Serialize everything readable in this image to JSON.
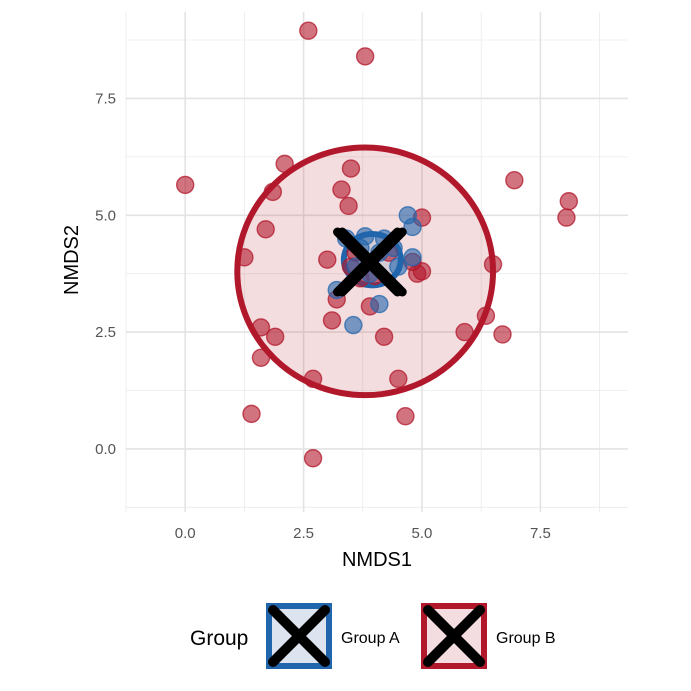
{
  "chart_data": {
    "type": "scatter",
    "xlabel": "NMDS1",
    "ylabel": "NMDS2",
    "xlim": [
      -1.25,
      9.35
    ],
    "ylim": [
      -1.35,
      9.35
    ],
    "x_ticks": [
      0.0,
      2.5,
      5.0,
      7.5
    ],
    "y_ticks": [
      0.0,
      2.5,
      5.0,
      7.5
    ],
    "x_tick_labels": [
      "0.0",
      "2.5",
      "5.0",
      "7.5"
    ],
    "y_tick_labels": [
      "0.0",
      "2.5",
      "5.0",
      "7.5"
    ],
    "grid": true,
    "legend_position": "bottom",
    "legend_title": "Group",
    "series": [
      {
        "name": "Group B",
        "color": "#b2182b",
        "centroid": [
          3.85,
          4.0
        ],
        "ellipse": {
          "cx": 3.8,
          "cy": 3.8,
          "rx": 2.7,
          "ry": 2.65
        },
        "points": [
          [
            2.6,
            8.95
          ],
          [
            3.8,
            8.4
          ],
          [
            0.0,
            5.65
          ],
          [
            2.1,
            6.1
          ],
          [
            1.85,
            5.5
          ],
          [
            1.7,
            4.7
          ],
          [
            1.25,
            4.1
          ],
          [
            3.5,
            6.0
          ],
          [
            3.3,
            5.55
          ],
          [
            3.45,
            5.2
          ],
          [
            6.95,
            5.75
          ],
          [
            8.1,
            5.3
          ],
          [
            8.05,
            4.95
          ],
          [
            5.0,
            4.95
          ],
          [
            6.5,
            3.95
          ],
          [
            6.35,
            2.85
          ],
          [
            6.7,
            2.45
          ],
          [
            5.9,
            2.5
          ],
          [
            4.9,
            3.75
          ],
          [
            5.0,
            3.8
          ],
          [
            4.8,
            4.0
          ],
          [
            3.0,
            4.05
          ],
          [
            3.2,
            3.2
          ],
          [
            3.1,
            2.75
          ],
          [
            3.7,
            3.65
          ],
          [
            3.9,
            3.05
          ],
          [
            4.2,
            2.4
          ],
          [
            4.5,
            1.5
          ],
          [
            4.65,
            0.7
          ],
          [
            2.7,
            1.5
          ],
          [
            2.7,
            -0.2
          ],
          [
            1.4,
            0.75
          ],
          [
            1.6,
            2.6
          ],
          [
            1.9,
            2.4
          ],
          [
            1.6,
            1.95
          ],
          [
            3.5,
            3.9
          ],
          [
            3.6,
            4.2
          ],
          [
            4.0,
            3.7
          ],
          [
            4.3,
            4.2
          ]
        ]
      },
      {
        "name": "Group A",
        "color": "#2166ac",
        "centroid": [
          3.95,
          4.0
        ],
        "ellipse": {
          "cx": 3.95,
          "cy": 4.05,
          "rx": 0.6,
          "ry": 0.55
        },
        "points": [
          [
            4.7,
            5.0
          ],
          [
            4.8,
            4.75
          ],
          [
            4.8,
            4.1
          ],
          [
            3.2,
            3.4
          ],
          [
            3.55,
            2.65
          ],
          [
            4.1,
            3.1
          ],
          [
            3.4,
            4.5
          ],
          [
            3.7,
            4.3
          ],
          [
            4.2,
            4.5
          ],
          [
            4.5,
            3.9
          ],
          [
            3.9,
            3.75
          ],
          [
            3.6,
            3.9
          ],
          [
            4.1,
            4.2
          ],
          [
            3.8,
            4.55
          ],
          [
            4.4,
            4.3
          ]
        ]
      }
    ]
  }
}
